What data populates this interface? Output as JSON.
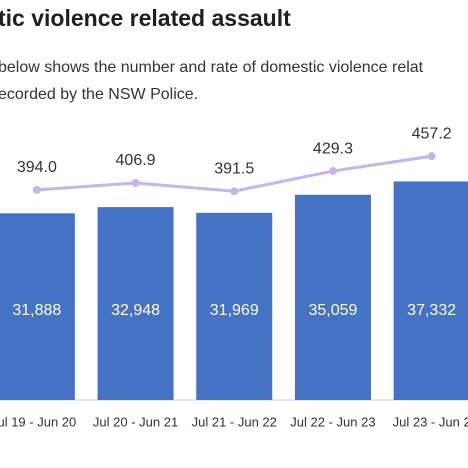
{
  "title": "tic violence related assault",
  "description": [
    "below shows the number and rate of domestic violence relat",
    "ecorded by the NSW Police."
  ],
  "chart_data": {
    "type": "bar",
    "categories": [
      "ul 19 - Jun 20",
      "Jul 20 - Jun 21",
      "Jul 21 - Jun 22",
      "Jul 22 - Jun 23",
      "Jul 23 - Jun 2"
    ],
    "series": [
      {
        "type": "bar",
        "color": "#4472c4",
        "values": [
          31888,
          32948,
          31969,
          35059,
          37332
        ],
        "value_labels": [
          "31,888",
          "32,948",
          "31,969",
          "35,059",
          "37,332"
        ]
      },
      {
        "type": "line",
        "axis": "y2",
        "color": "#c4b5f0",
        "values": [
          394.0,
          406.9,
          391.5,
          429.3,
          457.2
        ],
        "value_labels": [
          "394.0",
          "406.9",
          "391.5",
          "429.3",
          "457.2"
        ]
      }
    ],
    "ylim": [
      0,
      41000
    ],
    "y2lim": [
      0,
      450
    ]
  }
}
